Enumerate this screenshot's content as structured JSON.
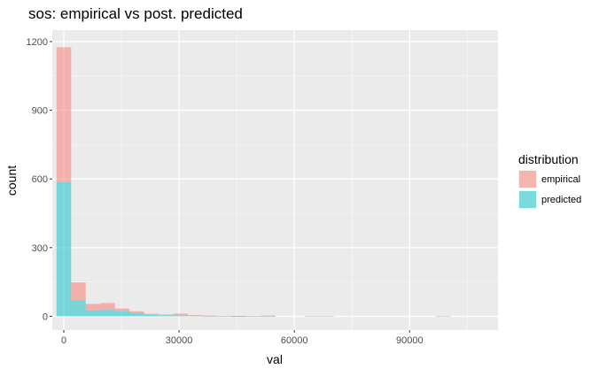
{
  "chart_data": {
    "type": "bar",
    "subtype": "stacked-histogram",
    "title": "sos: empirical vs post. predicted",
    "xlabel": "val",
    "ylabel": "count",
    "xlim": [
      -3000,
      113000
    ],
    "ylim": [
      -60,
      1250
    ],
    "x_ticks": [
      0,
      30000,
      60000,
      90000
    ],
    "x_tick_labels": [
      "0",
      "30000",
      "60000",
      "90000"
    ],
    "y_ticks": [
      0,
      300,
      600,
      900,
      1200
    ],
    "y_tick_labels": [
      "0",
      "300",
      "600",
      "900",
      "1200"
    ],
    "grid": true,
    "legend_position": "right",
    "legend_title": "distribution",
    "bin_width": 3800,
    "bin_starts": [
      -1900,
      1900,
      5700,
      9500,
      13300,
      17100,
      20900,
      24700,
      28500,
      32300,
      36100,
      39900,
      43700,
      47500,
      51300,
      55100,
      58900,
      62700,
      66500,
      70300,
      74100,
      77900,
      81700,
      85500,
      89300,
      93100,
      96900
    ],
    "series": [
      {
        "name": "empirical",
        "color": "#F8766D",
        "values": [
          590,
          78,
          28,
          30,
          12,
          8,
          5,
          3,
          8,
          2,
          1,
          0,
          1,
          0,
          1,
          0,
          0,
          1,
          1,
          0,
          0,
          0,
          0,
          0,
          0,
          0,
          1
        ]
      },
      {
        "name": "predicted",
        "color": "#00BFC4",
        "values": [
          585,
          70,
          26,
          28,
          22,
          14,
          6,
          5,
          4,
          3,
          2,
          2,
          1,
          1,
          2,
          0,
          0,
          0,
          0,
          0,
          0,
          0,
          0,
          0,
          0,
          0,
          0
        ]
      }
    ]
  }
}
